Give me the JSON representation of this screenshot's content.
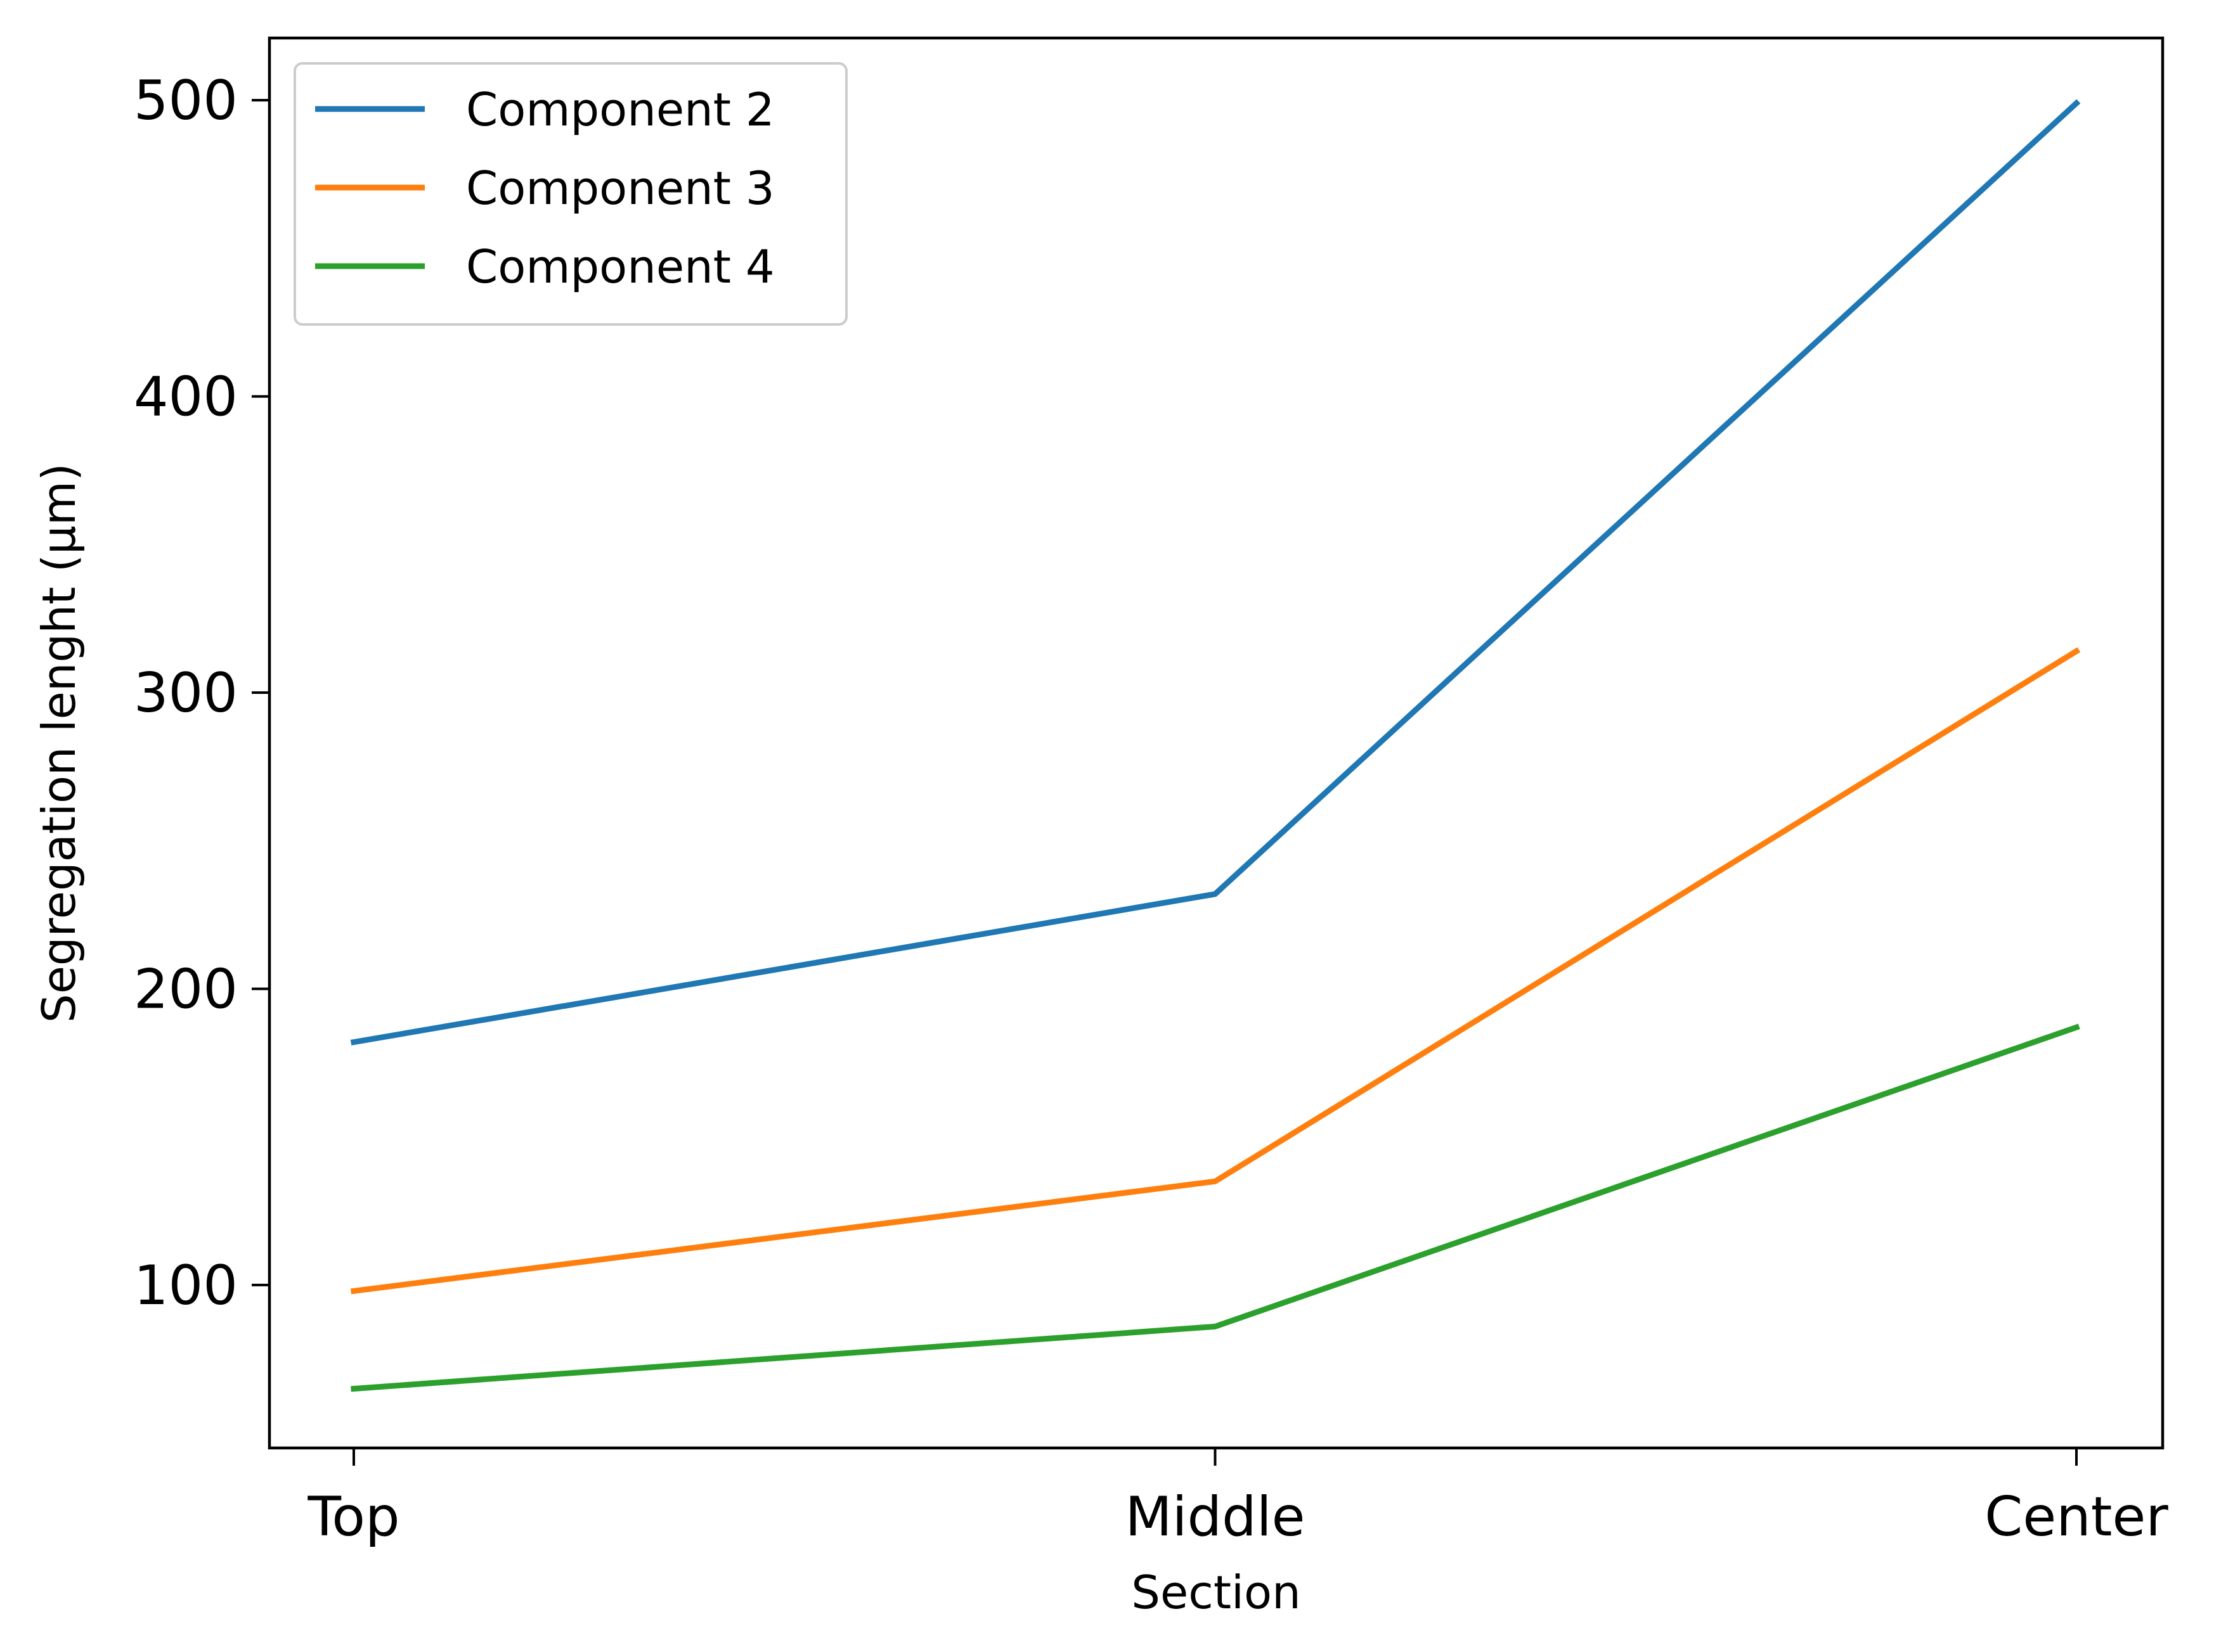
{
  "chart_data": {
    "type": "line",
    "categories": [
      "Top",
      "Middle",
      "Center"
    ],
    "series": [
      {
        "name": "Component 2",
        "values": [
          182,
          232,
          499
        ],
        "color": "#1f77b4"
      },
      {
        "name": "Component 3",
        "values": [
          98,
          135,
          314
        ],
        "color": "#ff7f0e"
      },
      {
        "name": "Component 4",
        "values": [
          65,
          86,
          187
        ],
        "color": "#2ca02c"
      }
    ],
    "title": "",
    "xlabel": "Section",
    "ylabel": "Segregation lenght (µm)",
    "ylim": [
      45,
      521
    ],
    "yticks": [
      100,
      200,
      300,
      400,
      500
    ],
    "grid": false,
    "legend_position": "top-left"
  }
}
